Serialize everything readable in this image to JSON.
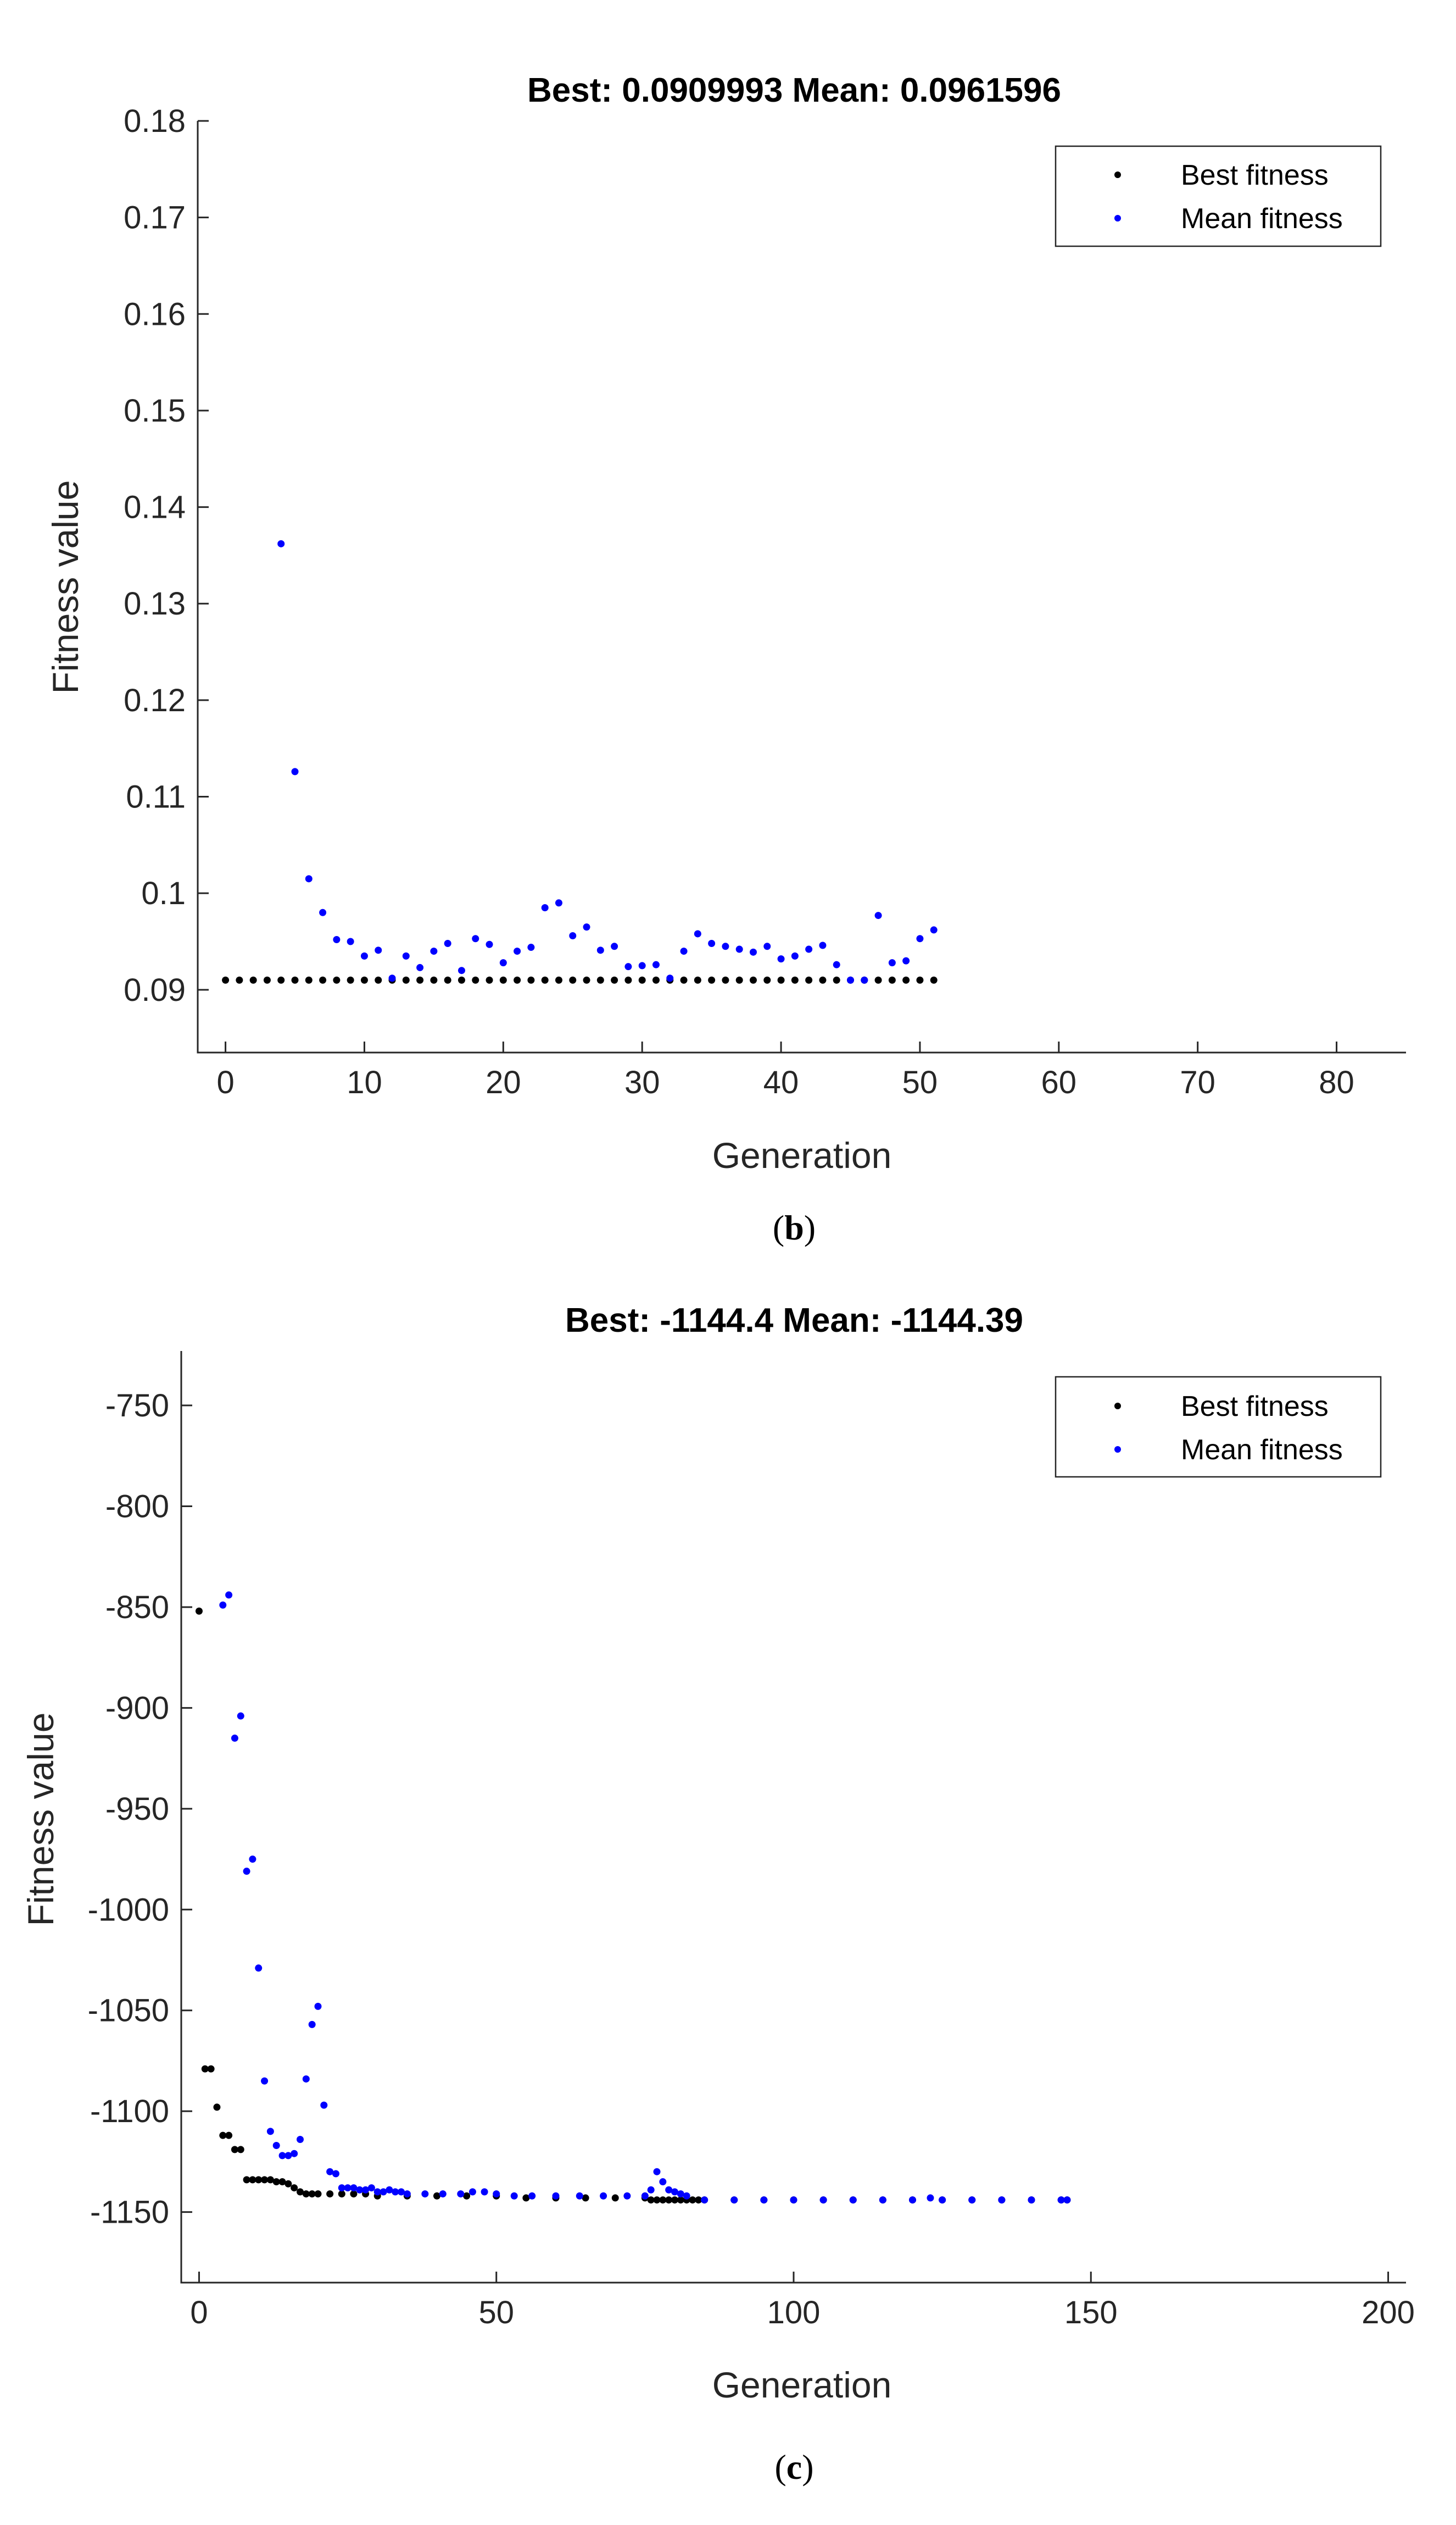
{
  "chart_data": [
    {
      "type": "scatter",
      "title": "Best: 0.0909993 Mean: 0.0961596",
      "xlabel": "Generation",
      "ylabel": "Fitness value",
      "xlim": [
        -2,
        85
      ],
      "ylim": [
        0.0835,
        0.18
      ],
      "xticks": [
        0,
        10,
        20,
        30,
        40,
        50,
        60,
        70,
        80
      ],
      "yticks": [
        0.09,
        0.1,
        0.11,
        0.12,
        0.13,
        0.14,
        0.15,
        0.16,
        0.17,
        0.18
      ],
      "ytick_labels": [
        "0.09",
        "0.1",
        "0.11",
        "0.12",
        "0.13",
        "0.14",
        "0.15",
        "0.16",
        "0.17",
        "0.18"
      ],
      "grid": false,
      "legend_position": "top-right",
      "caption": "b",
      "series": [
        {
          "name": "Best fitness",
          "color": "#000000",
          "x": [
            0,
            1,
            2,
            3,
            4,
            5,
            6,
            7,
            8,
            9,
            10,
            11,
            12,
            13,
            14,
            15,
            16,
            17,
            18,
            19,
            20,
            21,
            22,
            23,
            24,
            25,
            26,
            27,
            28,
            29,
            30,
            31,
            32,
            33,
            34,
            35,
            36,
            37,
            38,
            39,
            40,
            41,
            42,
            43,
            44,
            45,
            46,
            47,
            48,
            49,
            50,
            51
          ],
          "y": [
            0.091,
            0.091,
            0.091,
            0.091,
            0.091,
            0.091,
            0.091,
            0.091,
            0.091,
            0.091,
            0.091,
            0.091,
            0.091,
            0.091,
            0.091,
            0.091,
            0.091,
            0.091,
            0.091,
            0.091,
            0.091,
            0.091,
            0.091,
            0.091,
            0.091,
            0.091,
            0.091,
            0.091,
            0.091,
            0.091,
            0.091,
            0.091,
            0.091,
            0.091,
            0.091,
            0.091,
            0.091,
            0.091,
            0.091,
            0.091,
            0.091,
            0.091,
            0.091,
            0.091,
            0.091,
            0.091,
            0.091,
            0.091,
            0.091,
            0.091,
            0.091,
            0.091
          ]
        },
        {
          "name": "Mean fitness",
          "color": "#0000ff",
          "x": [
            4,
            5,
            6,
            7,
            8,
            9,
            10,
            11,
            12,
            13,
            14,
            15,
            16,
            17,
            18,
            19,
            20,
            21,
            22,
            23,
            24,
            25,
            26,
            27,
            28,
            29,
            30,
            31,
            32,
            33,
            34,
            35,
            36,
            37,
            38,
            39,
            40,
            41,
            42,
            43,
            44,
            45,
            46,
            47,
            48,
            49,
            50,
            51
          ],
          "y": [
            0.1362,
            0.1126,
            0.1015,
            0.098,
            0.0952,
            0.095,
            0.0935,
            0.0941,
            0.0912,
            0.0935,
            0.0923,
            0.094,
            0.0948,
            0.092,
            0.0953,
            0.0947,
            0.0928,
            0.094,
            0.0944,
            0.0985,
            0.099,
            0.0956,
            0.0965,
            0.0941,
            0.0945,
            0.0924,
            0.0925,
            0.0926,
            0.0912,
            0.094,
            0.0958,
            0.0948,
            0.0945,
            0.0942,
            0.0939,
            0.0945,
            0.0932,
            0.0935,
            0.0942,
            0.0946,
            0.0926,
            0.091,
            0.091,
            0.0977,
            0.0928,
            0.093,
            0.0953,
            0.0962
          ]
        }
      ]
    },
    {
      "type": "scatter",
      "title": "Best: -1144.4 Mean: -1144.39",
      "xlabel": "Generation",
      "ylabel": "Fitness value",
      "xlim": [
        -3,
        203
      ],
      "ylim": [
        -1185,
        -723
      ],
      "xticks": [
        0,
        50,
        100,
        150,
        200
      ],
      "yticks": [
        -1150,
        -1100,
        -1050,
        -1000,
        -950,
        -900,
        -850,
        -800,
        -750
      ],
      "ytick_labels": [
        "-1150",
        "-1100",
        "-1050",
        "-1000",
        "-950",
        "-900",
        "-850",
        "-800",
        "-750"
      ],
      "grid": false,
      "legend_position": "top-right",
      "caption": "c",
      "series": [
        {
          "name": "Best fitness",
          "color": "#000000",
          "x": [
            0,
            1,
            2,
            3,
            4,
            5,
            6,
            7,
            8,
            9,
            10,
            11,
            12,
            13,
            14,
            15,
            16,
            17,
            18,
            19,
            20,
            22,
            24,
            26,
            28,
            30,
            35,
            40,
            45,
            50,
            55,
            60,
            65,
            70,
            75,
            76,
            77,
            78,
            79,
            80,
            81,
            82,
            83,
            84,
            85,
            90,
            95,
            100,
            105,
            110,
            115,
            120,
            125,
            130,
            135,
            140,
            145,
            146
          ],
          "y": [
            -852,
            -1079,
            -1079,
            -1098,
            -1112,
            -1112,
            -1119,
            -1119,
            -1134,
            -1134,
            -1134,
            -1134,
            -1134,
            -1135,
            -1135,
            -1136,
            -1138,
            -1140,
            -1141,
            -1141,
            -1141,
            -1141,
            -1141,
            -1141,
            -1141,
            -1142,
            -1142,
            -1142,
            -1142,
            -1142,
            -1143,
            -1143,
            -1143,
            -1143,
            -1143,
            -1144,
            -1144,
            -1144,
            -1144,
            -1144,
            -1144,
            -1144,
            -1144,
            -1144,
            -1144,
            -1144,
            -1144,
            -1144,
            -1144,
            -1144,
            -1144,
            -1144,
            -1144,
            -1144,
            -1144,
            -1144,
            -1144,
            -1144
          ]
        },
        {
          "name": "Mean fitness",
          "color": "#0000ff",
          "x": [
            4,
            5,
            6,
            7,
            8,
            9,
            10,
            11,
            12,
            13,
            14,
            15,
            16,
            17,
            18,
            19,
            20,
            21,
            22,
            23,
            24,
            25,
            26,
            27,
            28,
            29,
            30,
            31,
            32,
            33,
            34,
            35,
            38,
            41,
            44,
            46,
            48,
            50,
            53,
            56,
            60,
            64,
            68,
            72,
            75,
            76,
            77,
            78,
            79,
            80,
            81,
            82,
            85,
            90,
            95,
            100,
            105,
            110,
            115,
            120,
            123,
            125,
            130,
            135,
            140,
            145,
            146
          ],
          "y": [
            -849,
            -844,
            -915,
            -904,
            -981,
            -975,
            -1029,
            -1085,
            -1110,
            -1117,
            -1122,
            -1122,
            -1121,
            -1114,
            -1084,
            -1057,
            -1048,
            -1097,
            -1130,
            -1131,
            -1138,
            -1138,
            -1138,
            -1139,
            -1139,
            -1138,
            -1140,
            -1140,
            -1139,
            -1140,
            -1140,
            -1141,
            -1141,
            -1141,
            -1141,
            -1140,
            -1140,
            -1141,
            -1142,
            -1142,
            -1142,
            -1142,
            -1142,
            -1142,
            -1142,
            -1139,
            -1130,
            -1135,
            -1139,
            -1140,
            -1141,
            -1142,
            -1144,
            -1144,
            -1144,
            -1144,
            -1144,
            -1144,
            -1144,
            -1144,
            -1143,
            -1144,
            -1144,
            -1144,
            -1144,
            -1144,
            -1144
          ]
        }
      ]
    }
  ]
}
